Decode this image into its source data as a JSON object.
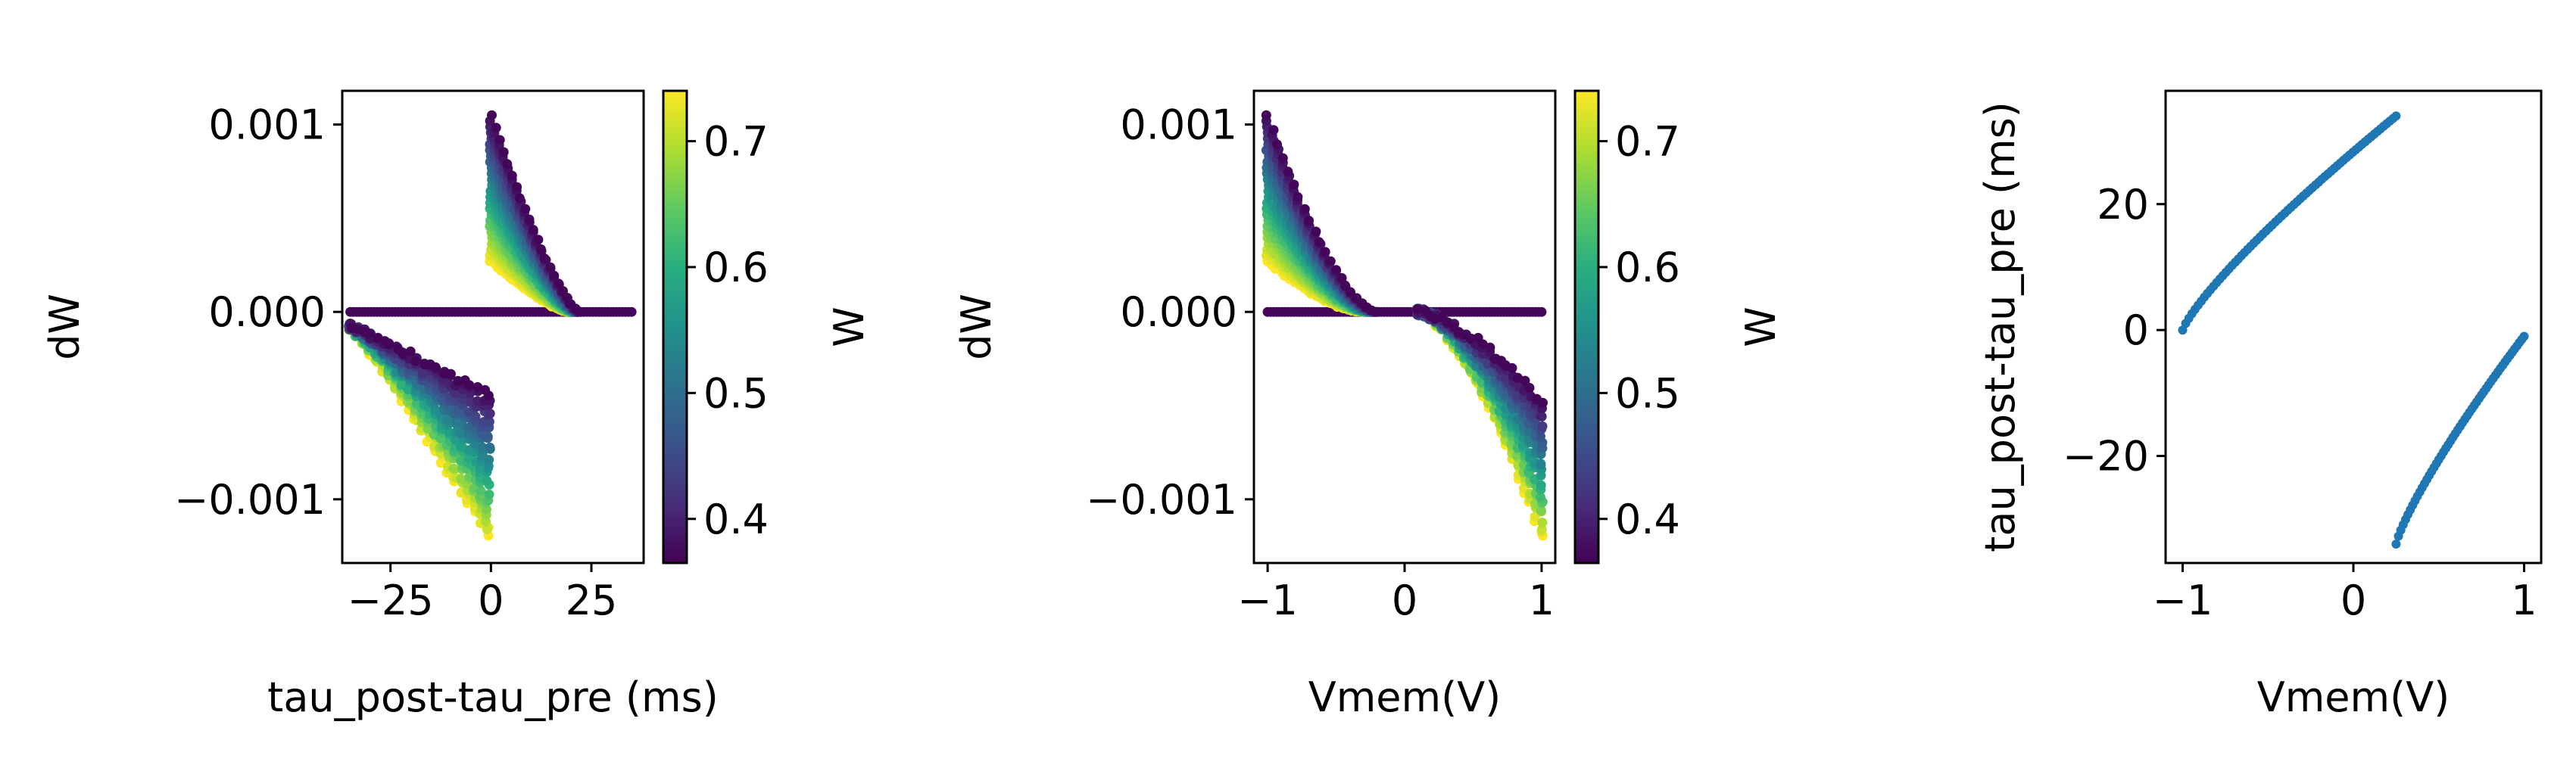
{
  "chart_data": [
    {
      "type": "scatter",
      "xlabel": "tau_post-tau_pre (ms)",
      "ylabel": "dW",
      "xlim": [
        -37,
        38
      ],
      "ylim": [
        -0.00134,
        0.00118
      ],
      "xticks": [
        {
          "v": -25,
          "label": "−25"
        },
        {
          "v": 0,
          "label": "0"
        },
        {
          "v": 25,
          "label": "25"
        }
      ],
      "yticks": [
        {
          "v": 0.001,
          "label": "0.001"
        },
        {
          "v": 0.0,
          "label": "0.000"
        },
        {
          "v": -0.001,
          "label": "−0.001"
        }
      ],
      "colorbar": {
        "label": "W",
        "colormap": "viridis",
        "range": [
          0.365,
          0.74
        ],
        "ticks": [
          {
            "v": 0.4,
            "label": "0.4"
          },
          {
            "v": 0.5,
            "label": "0.5"
          },
          {
            "v": 0.6,
            "label": "0.6"
          },
          {
            "v": 0.7,
            "label": "0.7"
          }
        ]
      },
      "series": [
        {
          "x_range": [
            -35,
            35
          ],
          "y": 0,
          "w": 0.37,
          "count": 90
        },
        {
          "x_range": [
            0,
            22
          ],
          "y_at_start": [
            0.00105,
            0.00025
          ],
          "y_end": 0,
          "w_range": [
            0.37,
            0.74
          ]
        },
        {
          "x_range": [
            -35,
            0
          ],
          "y_at_start": -0.0001,
          "y_at_end": [
            -0.0005,
            -0.0012
          ],
          "w_range": [
            0.37,
            0.74
          ]
        }
      ]
    },
    {
      "type": "scatter",
      "xlabel": "Vmem(V)",
      "ylabel": "dW",
      "xlim": [
        -1.1,
        1.1
      ],
      "ylim": [
        -0.00134,
        0.00118
      ],
      "xticks": [
        {
          "v": -1,
          "label": "−1"
        },
        {
          "v": 0,
          "label": "0"
        },
        {
          "v": 1,
          "label": "1"
        }
      ],
      "yticks": [
        {
          "v": 0.001,
          "label": "0.001"
        },
        {
          "v": 0.0,
          "label": "0.000"
        },
        {
          "v": -0.001,
          "label": "−0.001"
        }
      ],
      "colorbar": {
        "label": "W",
        "colormap": "viridis",
        "range": [
          0.365,
          0.74
        ],
        "ticks": [
          {
            "v": 0.4,
            "label": "0.4"
          },
          {
            "v": 0.5,
            "label": "0.5"
          },
          {
            "v": 0.6,
            "label": "0.6"
          },
          {
            "v": 0.7,
            "label": "0.7"
          }
        ]
      },
      "series": [
        {
          "x_range": [
            -1,
            1
          ],
          "y": 0,
          "w": 0.37
        },
        {
          "x_range": [
            -1,
            -0.2
          ],
          "y_at_start": [
            0.00105,
            0.00025
          ],
          "y_end": 0,
          "w_range": [
            0.37,
            0.74
          ]
        },
        {
          "x_range": [
            0.1,
            1
          ],
          "y_start": 0,
          "y_at_end": [
            -0.0005,
            -0.0012
          ],
          "w_range": [
            0.37,
            0.74
          ]
        }
      ]
    },
    {
      "type": "scatter",
      "xlabel": "Vmem(V)",
      "ylabel": "tau_post-tau_pre (ms)",
      "xlim": [
        -1.1,
        1.1
      ],
      "ylim": [
        -37,
        38
      ],
      "xticks": [
        {
          "v": -1,
          "label": "−1"
        },
        {
          "v": 0,
          "label": "0"
        },
        {
          "v": 1,
          "label": "1"
        }
      ],
      "yticks": [
        {
          "v": 20,
          "label": "20"
        },
        {
          "v": 0,
          "label": "0"
        },
        {
          "v": -20,
          "label": "−20"
        }
      ],
      "color": "#1f77b4",
      "series": [
        {
          "x_range": [
            -1,
            0.25
          ],
          "y_range": [
            0,
            34
          ]
        },
        {
          "x_range": [
            0.25,
            1
          ],
          "y_range": [
            -34,
            -1
          ]
        }
      ]
    }
  ]
}
